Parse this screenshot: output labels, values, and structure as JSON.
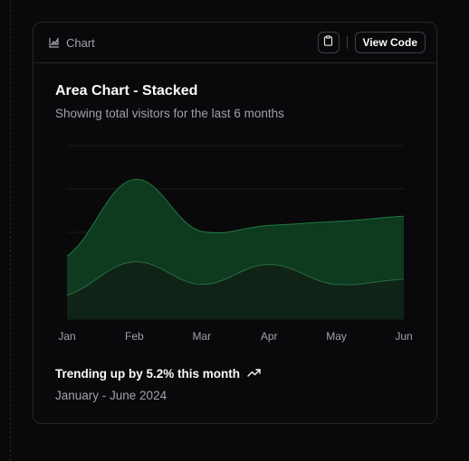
{
  "tag": {
    "label": "Chart",
    "icon": "area-chart-icon"
  },
  "toolbar": {
    "copy_icon": "clipboard-icon",
    "view_code_label": "View Code"
  },
  "card": {
    "title": "Area Chart - Stacked",
    "description": "Showing total visitors for the last 6 months"
  },
  "footer": {
    "trend_text": "Trending up by 5.2% this month",
    "trend_icon": "trending-up-icon",
    "range": "January - June 2024"
  },
  "colors": {
    "background": "#09090b",
    "border": "#27272a",
    "muted_text": "#a1a1aa",
    "desktop_fill": "#0f3d22",
    "desktop_stroke": "#1f7a3d",
    "mobile_fill": "#0f2417",
    "mobile_stroke": "#2a6b3e"
  },
  "chart_data": {
    "type": "area",
    "stacked": true,
    "categories": [
      "Jan",
      "Feb",
      "Mar",
      "Apr",
      "May",
      "Jun"
    ],
    "series": [
      {
        "key": "mobile",
        "values": [
          55,
          132,
          80,
          126,
          80,
          92
        ]
      },
      {
        "key": "desktop",
        "values": [
          90,
          190,
          122,
          90,
          145,
          145
        ]
      }
    ],
    "ylim": [
      0,
      400
    ],
    "grid": "horizontal",
    "xlabel": "",
    "ylabel": ""
  }
}
